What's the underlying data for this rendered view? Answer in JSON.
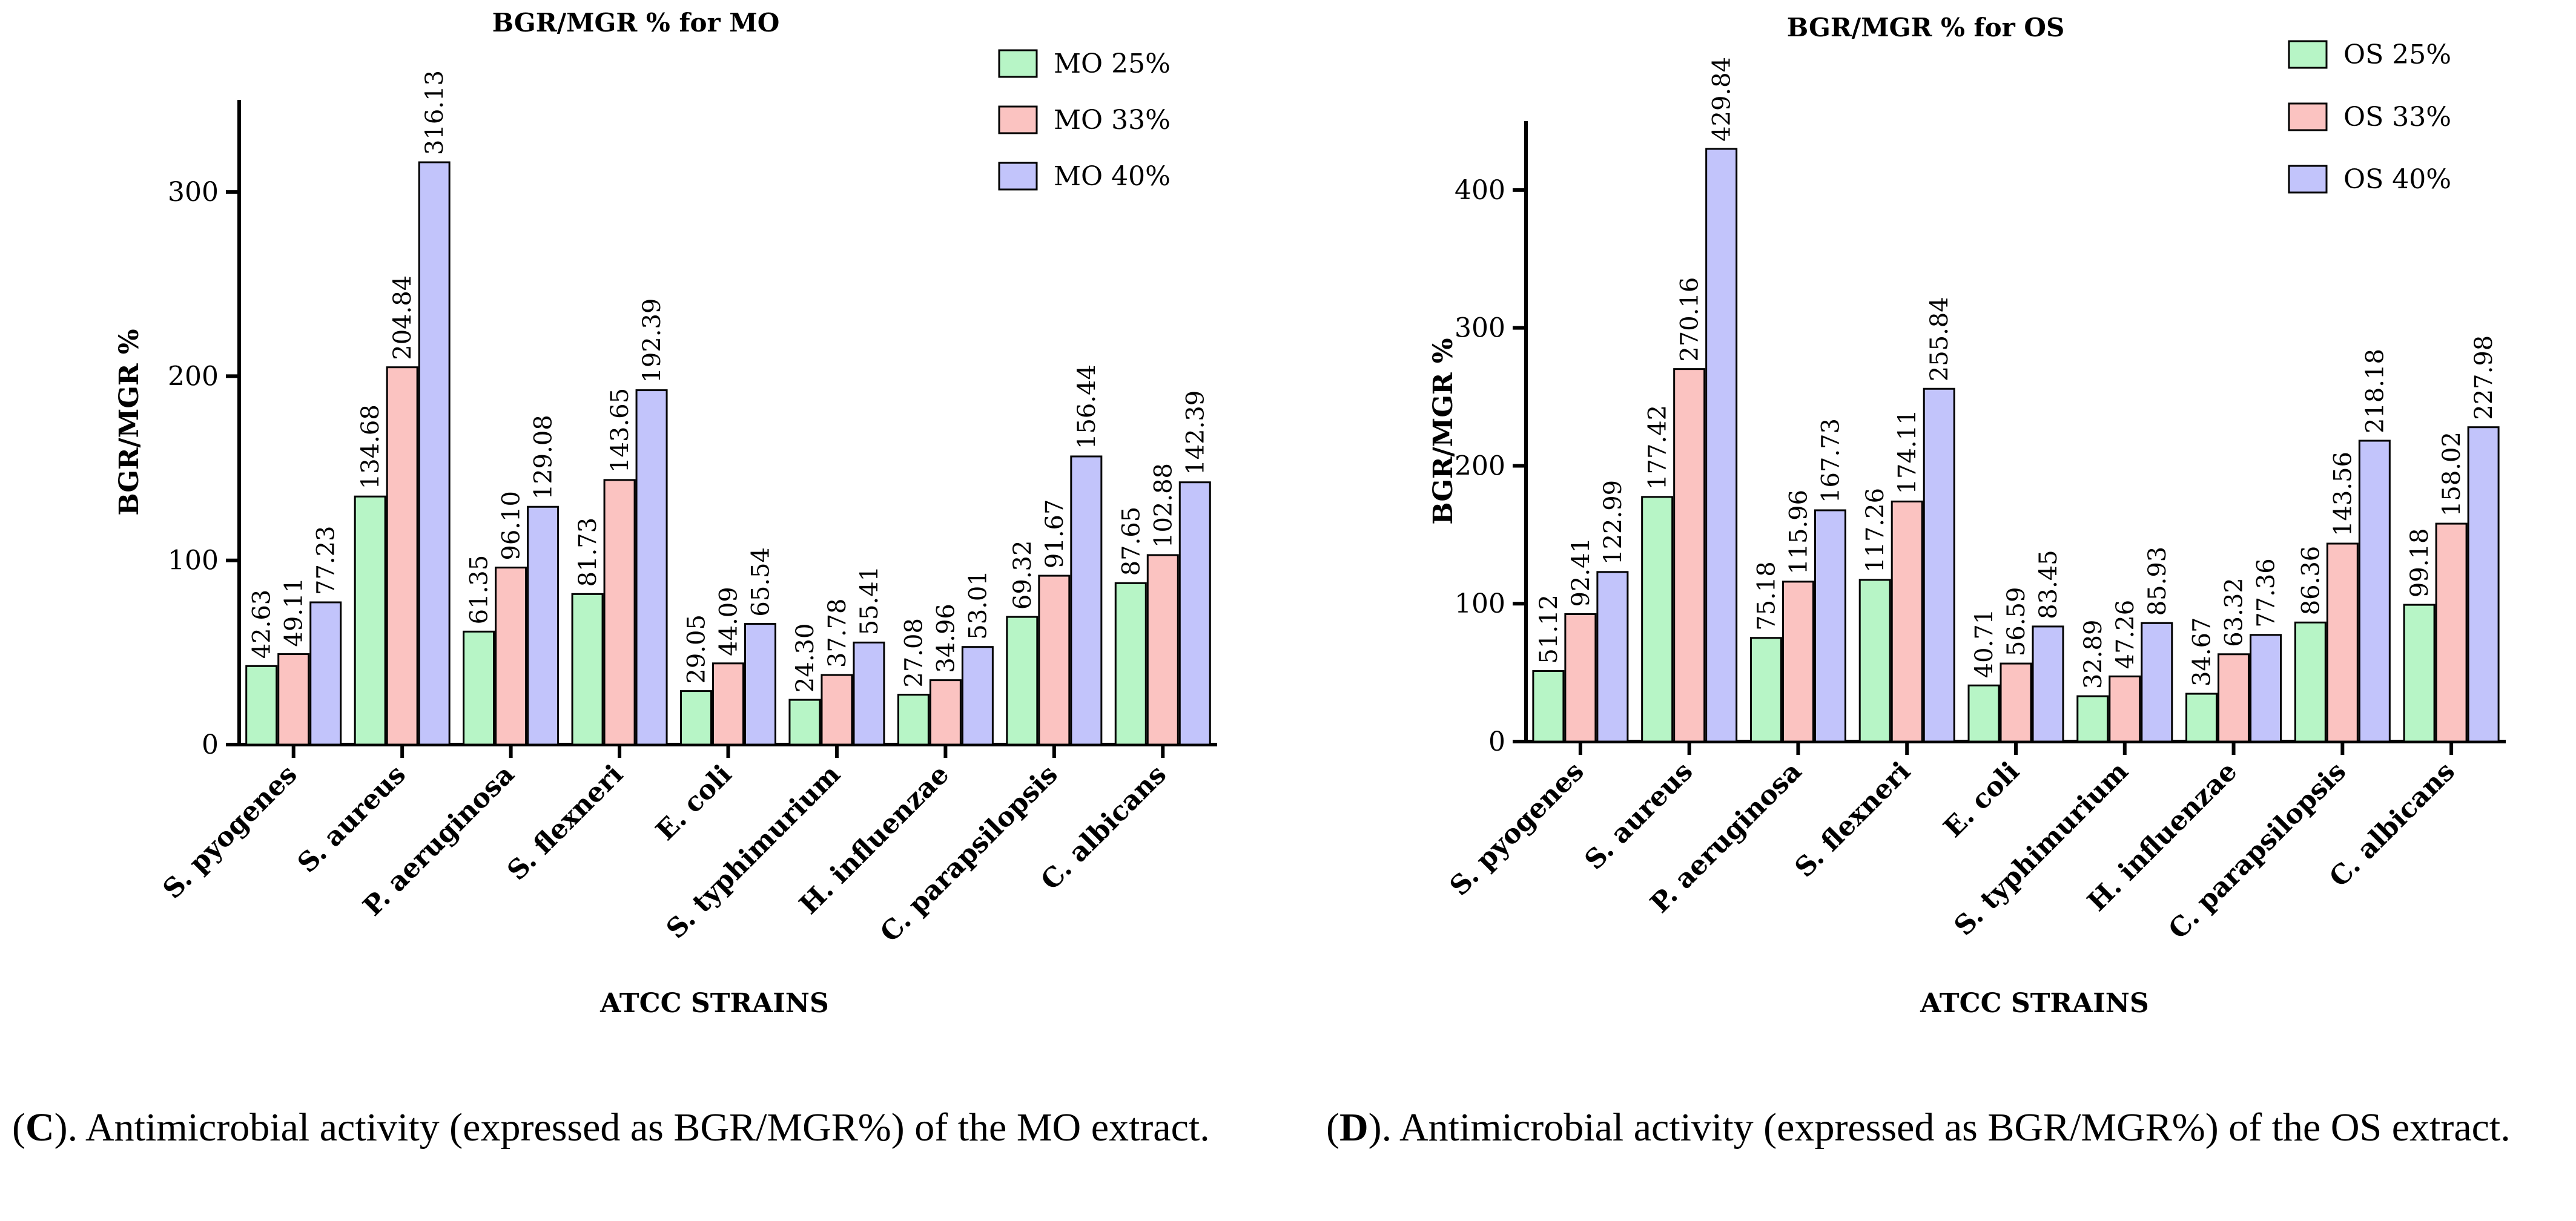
{
  "chart_data": [
    {
      "type": "bar",
      "title": "BGR/MGR % for MO",
      "xlabel": "ATCC STRAINS",
      "ylabel": "BGR/MGR %",
      "ylim": [
        0,
        350
      ],
      "yticks": [
        0,
        100,
        200,
        300
      ],
      "legend_position": "top-right",
      "categories": [
        "S. pyogenes",
        "S. aureus",
        "P. aeruginosa",
        "S. flexneri",
        "E. coli",
        "S. typhimurium",
        "H. influenzae",
        "C. parapsilopsis",
        "C. albicans"
      ],
      "series": [
        {
          "name": "MO 25%",
          "color": "#b7f5c6",
          "values": [
            42.63,
            134.68,
            61.35,
            81.73,
            29.05,
            24.3,
            27.08,
            69.32,
            87.65
          ],
          "labels": [
            "42.63",
            "134.68",
            "61.35",
            "81.73",
            "29.05",
            "24.30",
            "27.08",
            "69.32",
            "87.65"
          ]
        },
        {
          "name": "MO 33%",
          "color": "#fbc3c1",
          "values": [
            49.11,
            204.84,
            96.1,
            143.65,
            44.09,
            37.78,
            34.96,
            91.67,
            102.88
          ],
          "labels": [
            "49.11",
            "204.84",
            "96.10",
            "143.65",
            "44.09",
            "37.78",
            "34.96",
            "91.67",
            "102.88"
          ]
        },
        {
          "name": "MO 40%",
          "color": "#c2c4fb",
          "values": [
            77.23,
            316.13,
            129.08,
            192.39,
            65.54,
            55.41,
            53.01,
            156.44,
            142.39
          ],
          "labels": [
            "77.23",
            "316.13",
            "129.08",
            "192.39",
            "65.54",
            "55.41",
            "53.01",
            "156.44",
            "142.39"
          ]
        }
      ]
    },
    {
      "type": "bar",
      "title": "BGR/MGR % for OS",
      "xlabel": "ATCC STRAINS",
      "ylabel": "BGR/MGR %",
      "ylim": [
        0,
        450
      ],
      "yticks": [
        0,
        100,
        200,
        300,
        400
      ],
      "legend_position": "top-right",
      "categories": [
        "S. pyogenes",
        "S. aureus",
        "P. aeruginosa",
        "S. flexneri",
        "E. coli",
        "S. typhimurium",
        "H. influenzae",
        "C. parapsilopsis",
        "C. albicans"
      ],
      "series": [
        {
          "name": "OS 25%",
          "color": "#b7f5c6",
          "values": [
            51.12,
            177.42,
            75.18,
            117.26,
            40.71,
            32.89,
            34.67,
            86.36,
            99.18
          ],
          "labels": [
            "51.12",
            "177.42",
            "75.18",
            "117.26",
            "40.71",
            "32.89",
            "34.67",
            "86.36",
            "99.18"
          ]
        },
        {
          "name": "OS 33%",
          "color": "#fbc3c1",
          "values": [
            92.41,
            270.16,
            115.96,
            174.11,
            56.59,
            47.26,
            63.32,
            143.56,
            158.02
          ],
          "labels": [
            "92.41",
            "270.16",
            "115.96",
            "174.11",
            "56.59",
            "47.26",
            "63.32",
            "143.56",
            "158.02"
          ]
        },
        {
          "name": "OS 40%",
          "color": "#c2c4fb",
          "values": [
            122.99,
            429.84,
            167.73,
            255.84,
            83.45,
            85.93,
            77.36,
            218.18,
            227.98
          ],
          "labels": [
            "122.99",
            "429.84",
            "167.73",
            "255.84",
            "83.45",
            "85.93",
            "77.36",
            "218.18",
            "227.98"
          ]
        }
      ]
    }
  ],
  "captions": {
    "c": {
      "letter": "C",
      "open": "(",
      "text": "). Antimicrobial activity (expressed as BGR/MGR%) of the MO extract."
    },
    "d": {
      "letter": "D",
      "open": "(",
      "text": "). Antimicrobial activity (expressed as BGR/MGR%) of the OS extract."
    }
  }
}
